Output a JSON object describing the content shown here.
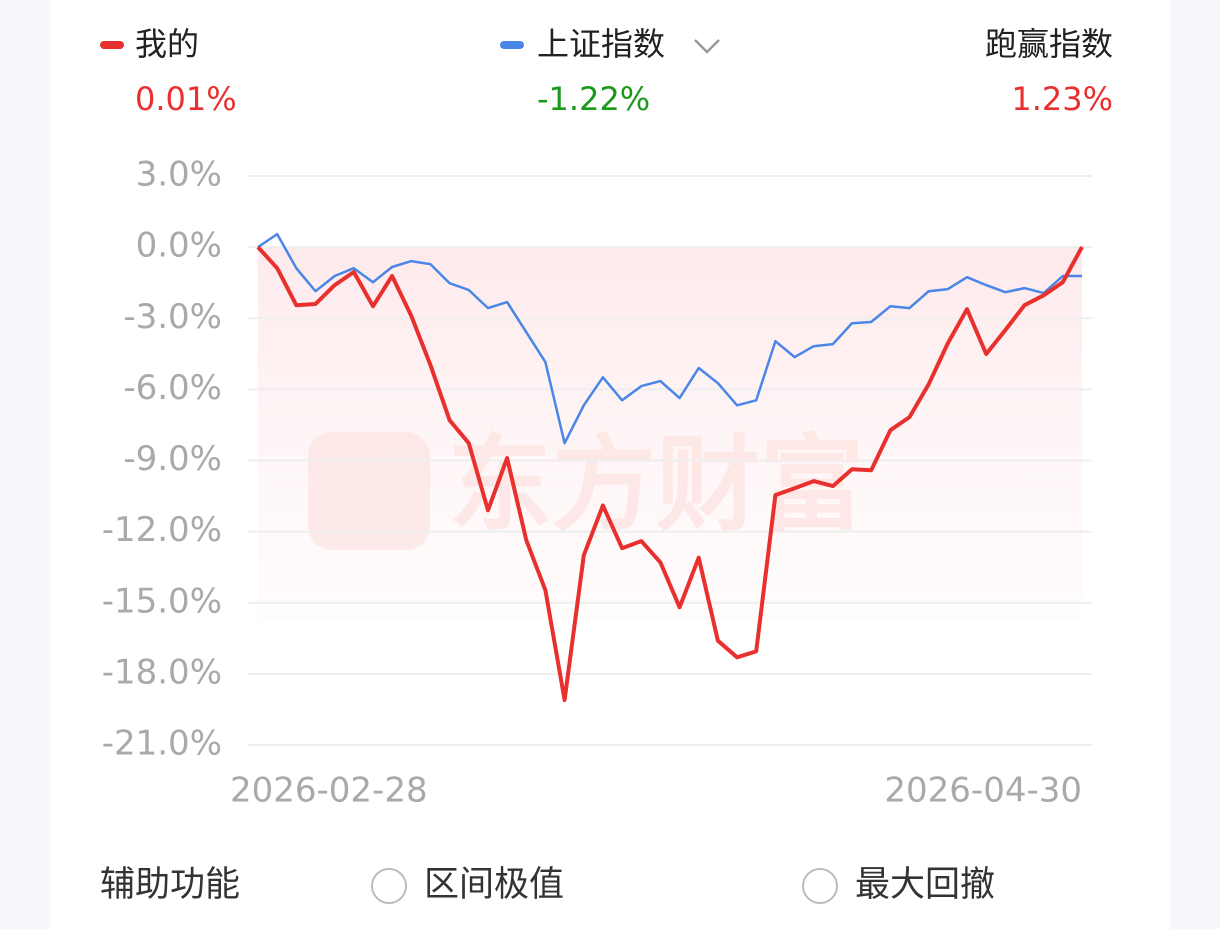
{
  "chart_data": {
    "type": "line",
    "categories": [
      "2026-02-28",
      null,
      null,
      null,
      null,
      null,
      null,
      null,
      null,
      null,
      null,
      null,
      null,
      null,
      null,
      null,
      null,
      null,
      null,
      null,
      null,
      null,
      null,
      null,
      null,
      null,
      null,
      null,
      null,
      null,
      null,
      null,
      null,
      null,
      null,
      null,
      null,
      null,
      null,
      null,
      null,
      null,
      null,
      "2026-04-30"
    ],
    "series": [
      {
        "name": "我的",
        "color": "#e8302e",
        "total_label": "0.01%",
        "total_color": "#e8302e",
        "values": [
          0,
          -0.89,
          -2.45,
          -2.4,
          -1.6,
          -1.05,
          -2.49,
          -1.22,
          -2.9,
          -4.98,
          -7.3,
          -8.27,
          -11.1,
          -8.9,
          -12.36,
          -14.47,
          -19.1,
          -13.0,
          -10.9,
          -12.7,
          -12.4,
          -13.3,
          -15.19,
          -13.1,
          -16.6,
          -17.3,
          -17.05,
          -10.46,
          -10.17,
          -9.87,
          -10.08,
          -9.37,
          -9.41,
          -7.72,
          -7.17,
          -5.78,
          -4.05,
          -2.62,
          -4.51,
          -3.5,
          -2.45,
          -2.03,
          -1.48,
          0.01
        ]
      },
      {
        "name": "上证指数",
        "color": "#4a86e8",
        "total_label": "-1.22%",
        "total_color": "#1a9a1a",
        "values": [
          0,
          0.55,
          -0.89,
          -1.86,
          -1.22,
          -0.89,
          -1.48,
          -0.84,
          -0.59,
          -0.72,
          -1.52,
          -1.81,
          -2.57,
          -2.32,
          -3.59,
          -4.85,
          -8.27,
          -6.67,
          -5.49,
          -6.46,
          -5.86,
          -5.65,
          -6.37,
          -5.1,
          -5.74,
          -6.67,
          -6.46,
          -3.97,
          -4.64,
          -4.18,
          -4.09,
          -3.21,
          -3.16,
          -2.49,
          -2.57,
          -1.86,
          -1.77,
          -1.27,
          -1.6,
          -1.9,
          -1.73,
          -1.94,
          -1.22,
          -1.22
        ]
      }
    ],
    "outperform": {
      "name": "跑赢指数",
      "total_label": "1.23%",
      "total_color": "#e8302e"
    },
    "ylim": [
      -21,
      3
    ],
    "yticks": [
      {
        "value": 3,
        "label": "3.0%"
      },
      {
        "value": 0,
        "label": "0.0%"
      },
      {
        "value": -3,
        "label": "-3.0%"
      },
      {
        "value": -6,
        "label": "-6.0%"
      },
      {
        "value": -9,
        "label": "-9.0%"
      },
      {
        "value": -12,
        "label": "-12.0%"
      },
      {
        "value": -15,
        "label": "-15.0%"
      },
      {
        "value": -18,
        "label": "-18.0%"
      },
      {
        "value": -21,
        "label": "-21.0%"
      }
    ],
    "grid": true,
    "watermark": "东方财富"
  },
  "controls": {
    "title": "辅助功能",
    "options": [
      "区间极值",
      "最大回撤"
    ]
  }
}
